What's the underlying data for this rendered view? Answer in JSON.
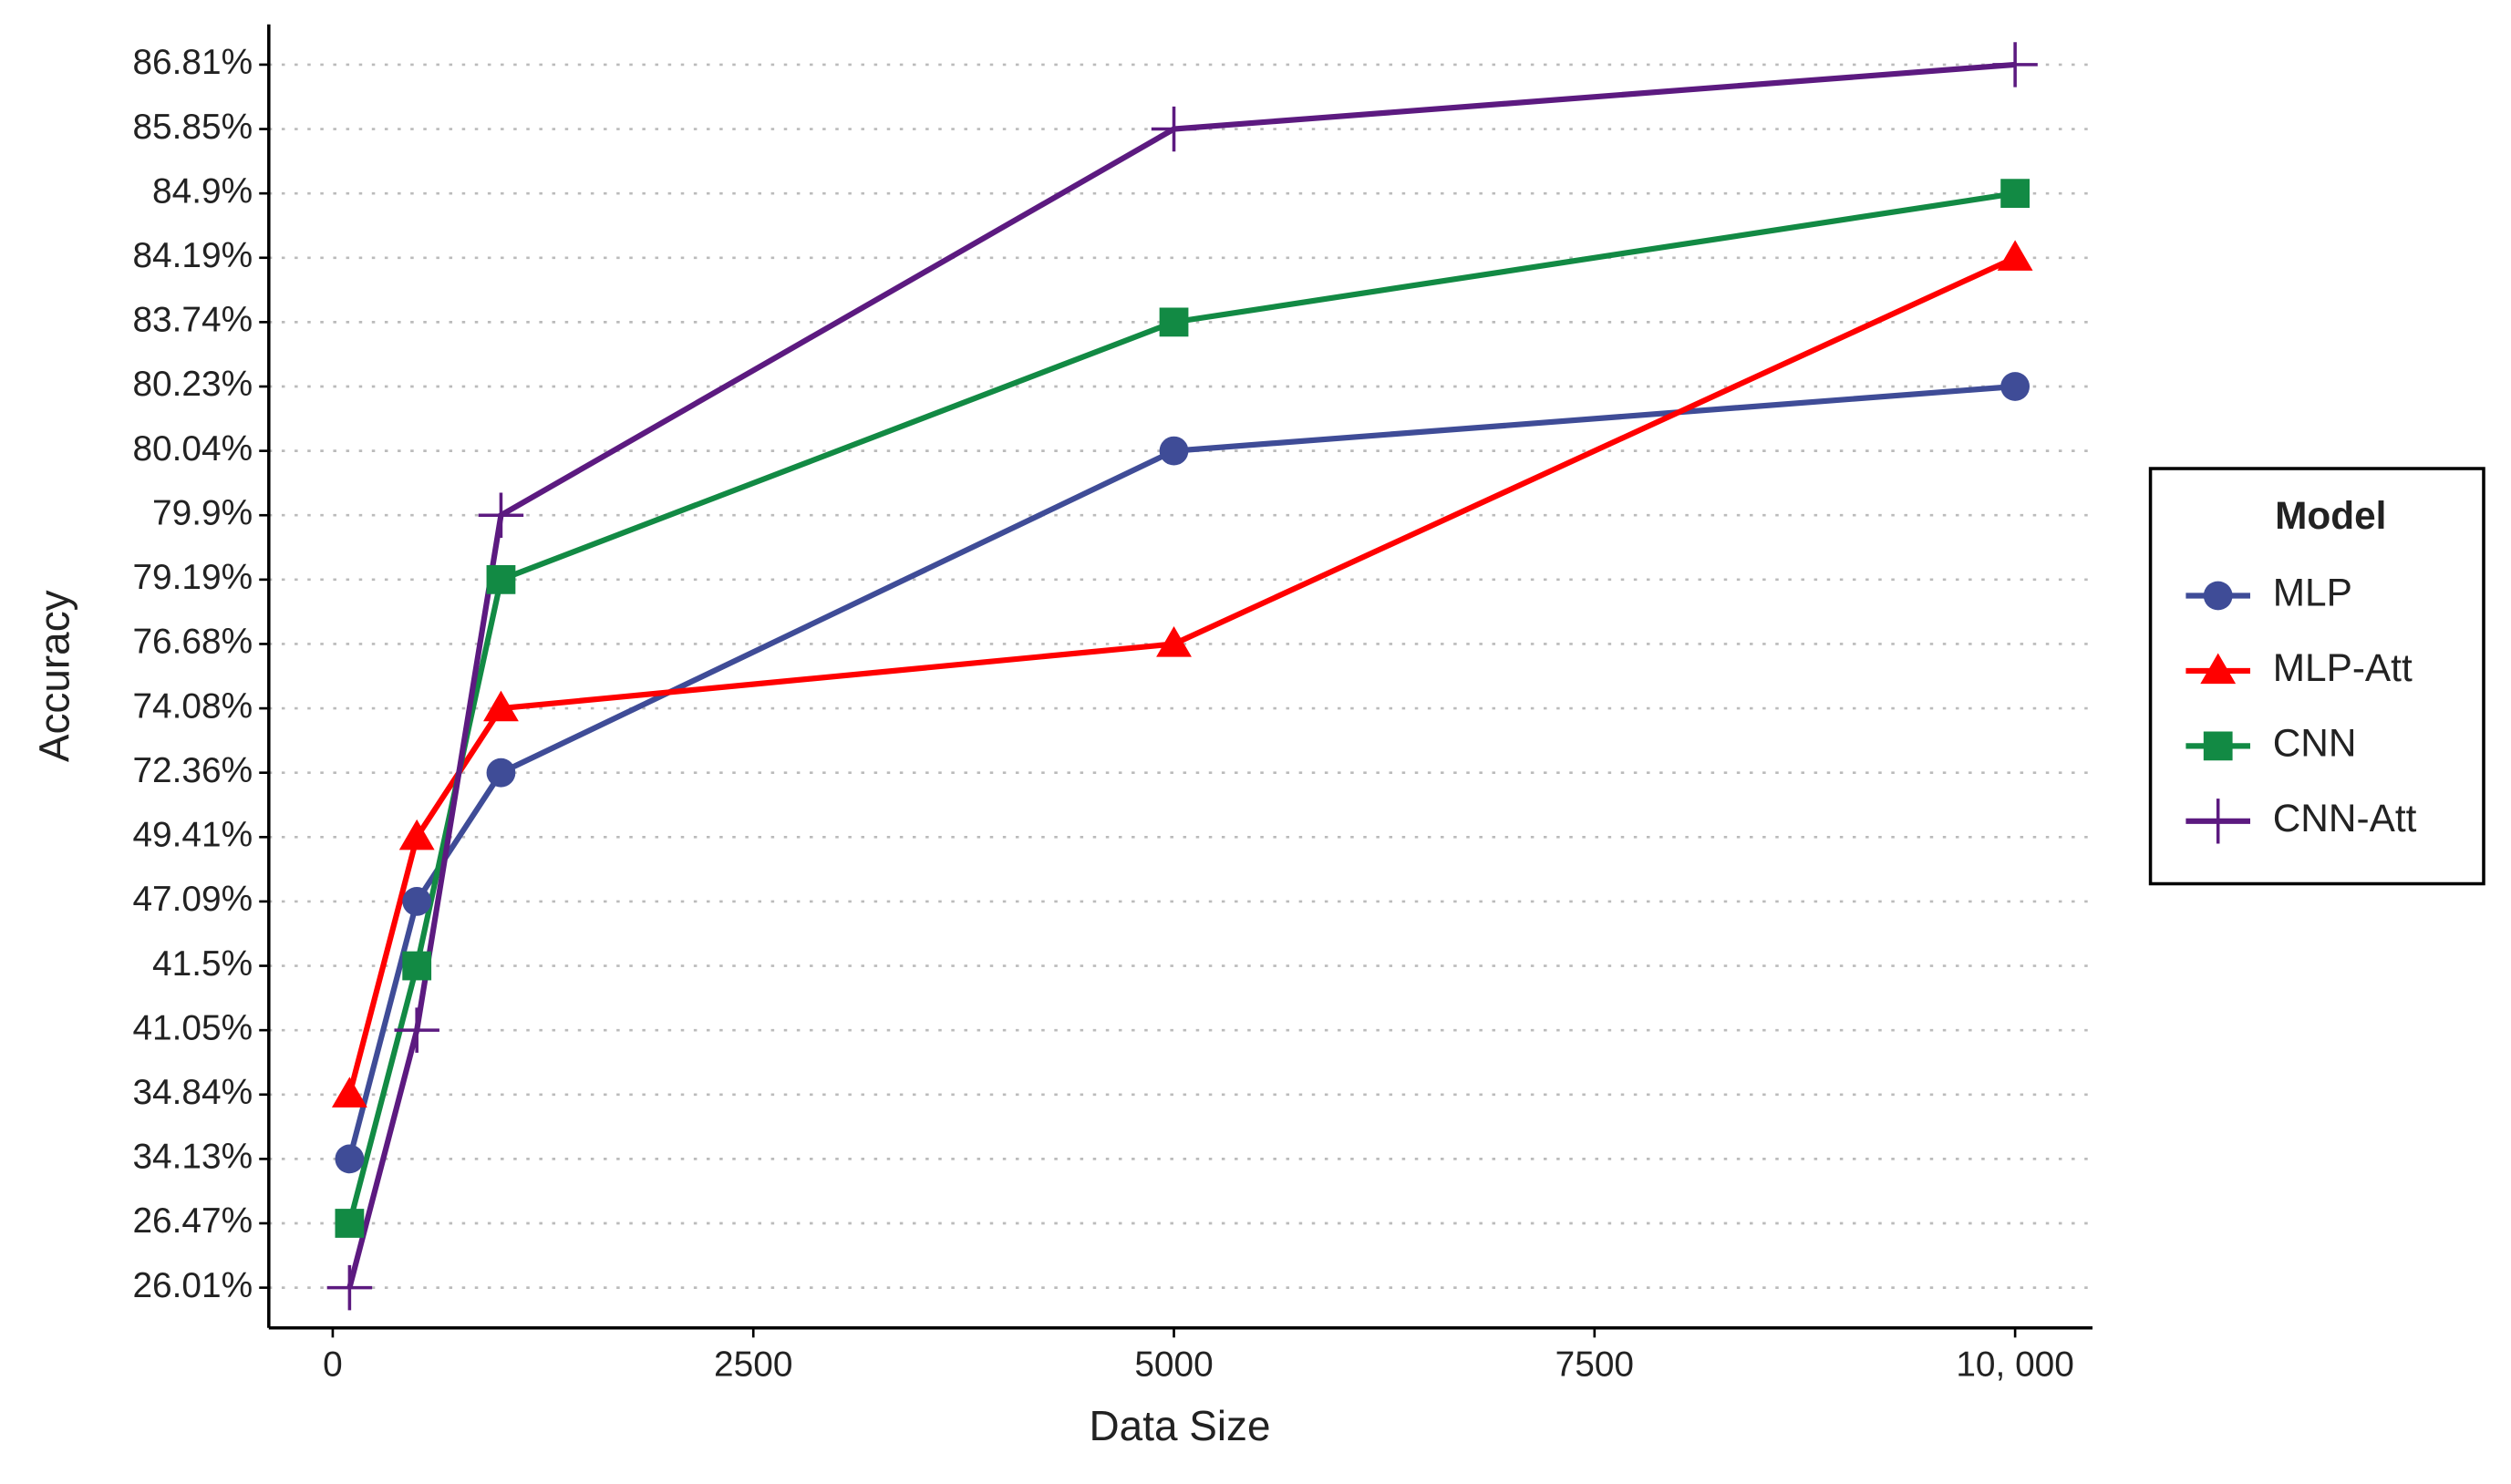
{
  "chart_data": {
    "type": "line",
    "x_label": "Data Size",
    "y_label": "Accuracy",
    "y_scale": "ordinal",
    "grid": true,
    "legend_title": "Model",
    "legend_position": "right",
    "x": [
      100,
      500,
      1000,
      5000,
      10000
    ],
    "xlim": [
      -380,
      10460
    ],
    "xticks": [
      0,
      2500,
      5000,
      7500,
      {
        "value": 10000,
        "label": "10, 000"
      }
    ],
    "yticks": [
      {
        "value": 26.01,
        "label": "26.01%"
      },
      {
        "value": 26.47,
        "label": "26.47%"
      },
      {
        "value": 34.13,
        "label": "34.13%"
      },
      {
        "value": 34.84,
        "label": "34.84%"
      },
      {
        "value": 41.05,
        "label": "41.05%"
      },
      {
        "value": 41.5,
        "label": "41.5%"
      },
      {
        "value": 47.09,
        "label": "47.09%"
      },
      {
        "value": 49.41,
        "label": "49.41%"
      },
      {
        "value": 72.36,
        "label": "72.36%"
      },
      {
        "value": 74.08,
        "label": "74.08%"
      },
      {
        "value": 76.68,
        "label": "76.68%"
      },
      {
        "value": 79.19,
        "label": "79.19%"
      },
      {
        "value": 79.9,
        "label": "79.9%"
      },
      {
        "value": 80.04,
        "label": "80.04%"
      },
      {
        "value": 80.23,
        "label": "80.23%"
      },
      {
        "value": 83.74,
        "label": "83.74%"
      },
      {
        "value": 84.19,
        "label": "84.19%"
      },
      {
        "value": 84.9,
        "label": "84.9%"
      },
      {
        "value": 85.85,
        "label": "85.85%"
      },
      {
        "value": 86.81,
        "label": "86.81%"
      }
    ],
    "series": [
      {
        "name": "MLP",
        "color": "#3f4c97",
        "marker": "circle",
        "values": [
          34.13,
          47.09,
          72.36,
          80.04,
          80.23
        ]
      },
      {
        "name": "MLP-Att",
        "color": "#ff0000",
        "marker": "triangle",
        "values": [
          34.84,
          49.41,
          74.08,
          76.68,
          84.19
        ]
      },
      {
        "name": "CNN",
        "color": "#128a44",
        "marker": "square",
        "values": [
          26.47,
          41.5,
          79.19,
          83.74,
          84.9
        ]
      },
      {
        "name": "CNN-Att",
        "color": "#5c1a80",
        "marker": "plus",
        "values": [
          26.01,
          41.05,
          79.9,
          85.85,
          86.81
        ]
      }
    ]
  }
}
